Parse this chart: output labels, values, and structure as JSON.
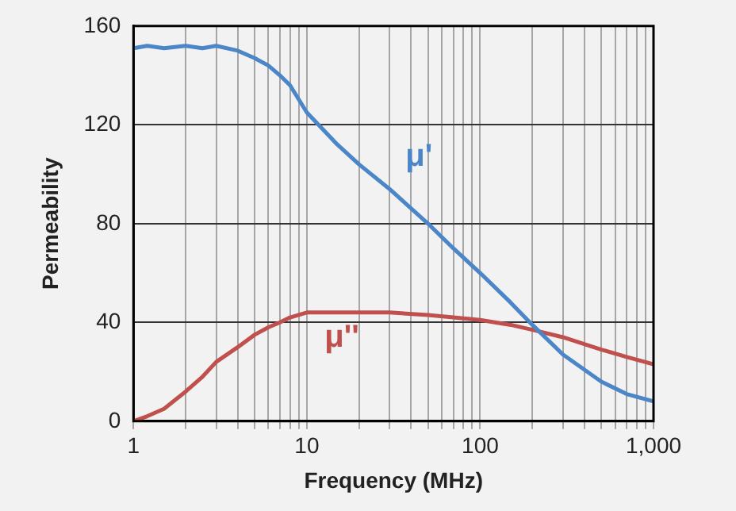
{
  "chart_data": {
    "type": "line",
    "xlabel": "Frequency (MHz)",
    "ylabel": "Permeability",
    "log": "x",
    "grid": true,
    "legend": false,
    "marker": "none",
    "line_style": "solid",
    "xlim": [
      1,
      1000
    ],
    "ylim": [
      0,
      160
    ],
    "yticks": [
      0,
      40,
      80,
      120,
      160
    ],
    "xticks": [
      1,
      {
        "value": 2,
        "label": null
      },
      {
        "value": 3,
        "label": null
      },
      {
        "value": 4,
        "label": null
      },
      {
        "value": 5,
        "label": null
      },
      {
        "value": 6,
        "label": null
      },
      {
        "value": 7,
        "label": null
      },
      {
        "value": 8,
        "label": null
      },
      {
        "value": 9,
        "label": null
      },
      10,
      {
        "value": 20,
        "label": null
      },
      {
        "value": 30,
        "label": null
      },
      {
        "value": 40,
        "label": null
      },
      {
        "value": 50,
        "label": null
      },
      {
        "value": 60,
        "label": null
      },
      {
        "value": 70,
        "label": null
      },
      {
        "value": 80,
        "label": null
      },
      {
        "value": 90,
        "label": null
      },
      100,
      {
        "value": 200,
        "label": null
      },
      {
        "value": 300,
        "label": null
      },
      {
        "value": 400,
        "label": null
      },
      {
        "value": 500,
        "label": null
      },
      {
        "value": 600,
        "label": null
      },
      {
        "value": 700,
        "label": null
      },
      {
        "value": 800,
        "label": null
      },
      {
        "value": 900,
        "label": null
      },
      {
        "value": 1000,
        "label": "1,000"
      }
    ],
    "x": [
      1,
      1.2,
      1.5,
      2,
      2.5,
      3,
      4,
      5,
      6,
      7,
      8,
      10,
      15,
      20,
      30,
      50,
      70,
      100,
      150,
      200,
      300,
      500,
      700,
      1000
    ],
    "series": [
      {
        "name": "μ'",
        "color": "#4a86c8",
        "values": [
          151,
          152,
          151,
          152,
          151,
          152,
          150,
          147,
          144,
          140,
          136,
          125,
          112,
          104,
          94,
          80,
          70,
          60,
          48,
          39,
          27,
          16,
          11,
          8
        ]
      },
      {
        "name": "μ''",
        "color": "#c0504d",
        "values": [
          0,
          2,
          5,
          12,
          18,
          24,
          30,
          35,
          38,
          40,
          42,
          44,
          44,
          44,
          44,
          43,
          42,
          41,
          39,
          37,
          34,
          29,
          26,
          23
        ]
      }
    ]
  }
}
